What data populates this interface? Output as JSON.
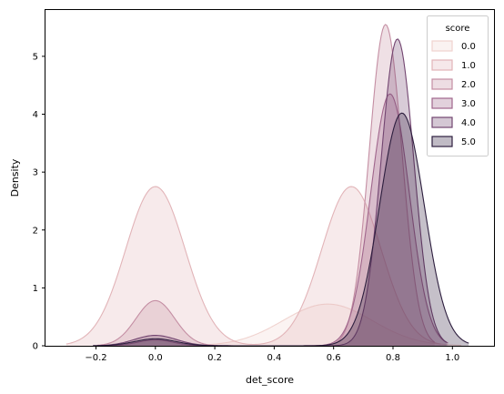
{
  "chart_data": {
    "type": "area",
    "xlabel": "det_score",
    "ylabel": "Density",
    "xlim": [
      -0.37,
      1.14
    ],
    "ylim": [
      0,
      5.8
    ],
    "x_ticks": [
      "−0.2",
      "0.0",
      "0.2",
      "0.4",
      "0.6",
      "0.8",
      "1.0"
    ],
    "x_tick_values": [
      -0.2,
      0.0,
      0.2,
      0.4,
      0.6,
      0.8,
      1.0
    ],
    "y_ticks": [
      "0",
      "1",
      "2",
      "3",
      "4",
      "5"
    ],
    "y_tick_values": [
      0,
      1,
      2,
      3,
      4,
      5
    ],
    "legend": {
      "title": "score",
      "placement": "top-right"
    },
    "series": [
      {
        "name": "0.0",
        "color": "#f0d3cf",
        "fill_alpha": 0.28,
        "components": [
          {
            "mu": 0.58,
            "sigma": 0.15,
            "peak": 0.72
          }
        ]
      },
      {
        "name": "1.0",
        "color": "#e2b4b8",
        "fill_alpha": 0.28,
        "components": [
          {
            "mu": 0.0,
            "sigma": 0.1,
            "peak": 2.75
          },
          {
            "mu": 0.66,
            "sigma": 0.1,
            "peak": 2.75
          }
        ]
      },
      {
        "name": "2.0",
        "color": "#c48ea3",
        "fill_alpha": 0.28,
        "components": [
          {
            "mu": 0.0,
            "sigma": 0.065,
            "peak": 0.78
          },
          {
            "mu": 0.775,
            "sigma": 0.055,
            "peak": 5.55
          }
        ]
      },
      {
        "name": "3.0",
        "color": "#a0668c",
        "fill_alpha": 0.28,
        "components": [
          {
            "mu": 0.0,
            "sigma": 0.06,
            "peak": 0.1
          },
          {
            "mu": 0.79,
            "sigma": 0.065,
            "peak": 4.35
          }
        ]
      },
      {
        "name": "4.0",
        "color": "#724570",
        "fill_alpha": 0.28,
        "components": [
          {
            "mu": 0.0,
            "sigma": 0.07,
            "peak": 0.18
          },
          {
            "mu": 0.815,
            "sigma": 0.055,
            "peak": 5.3
          }
        ]
      },
      {
        "name": "5.0",
        "color": "#2d1e3e",
        "fill_alpha": 0.28,
        "components": [
          {
            "mu": 0.0,
            "sigma": 0.07,
            "peak": 0.12
          },
          {
            "mu": 0.83,
            "sigma": 0.075,
            "peak": 4.02
          }
        ]
      }
    ]
  }
}
